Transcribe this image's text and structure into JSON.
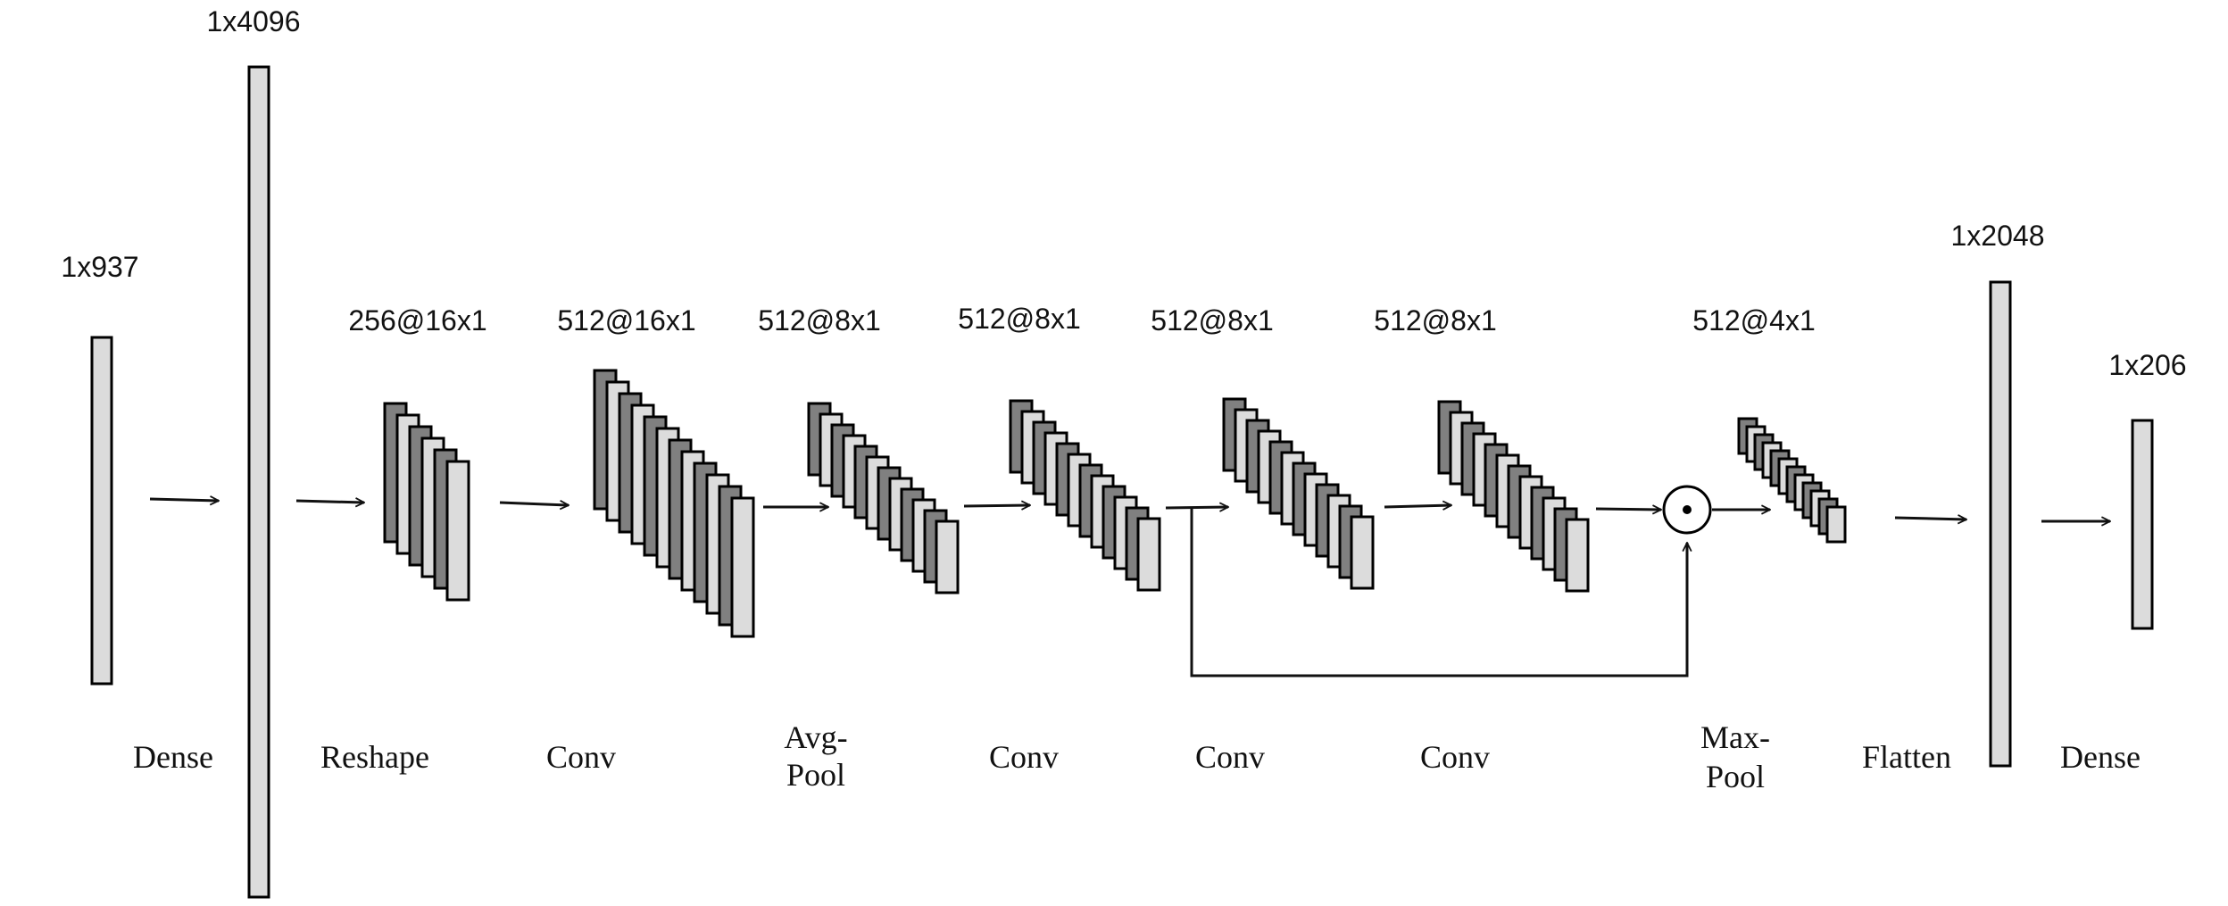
{
  "colors": {
    "light": "#dcdcdc",
    "dark": "#808080",
    "stroke": "#000000",
    "line": "#111111"
  },
  "dims": {
    "input": "1x937",
    "dense1": "1x4096",
    "reshape": "256@16x1",
    "conv1": "512@16x1",
    "avgpool": "512@8x1",
    "conv2": "512@8x1",
    "conv3": "512@8x1",
    "conv4": "512@8x1",
    "maxpool": "512@4x1",
    "flatten": "1x2048",
    "dense2": "1x206"
  },
  "ops": {
    "dense1": "Dense",
    "reshape": "Reshape",
    "conv1": "Conv",
    "avgpool_line1": "Avg-",
    "avgpool_line2": "Pool",
    "conv2": "Conv",
    "conv3": "Conv",
    "conv4": "Conv",
    "maxpool_line1": "Max-",
    "maxpool_line2": "Pool",
    "flatten": "Flatten",
    "dense2": "Dense"
  },
  "merge_symbol": "element-wise-product-icon",
  "stacks": {
    "reshape": 6,
    "conv1": 12,
    "avgpool": 12,
    "conv2": 12,
    "conv3": 12,
    "conv4": 12,
    "maxpool": 12
  }
}
